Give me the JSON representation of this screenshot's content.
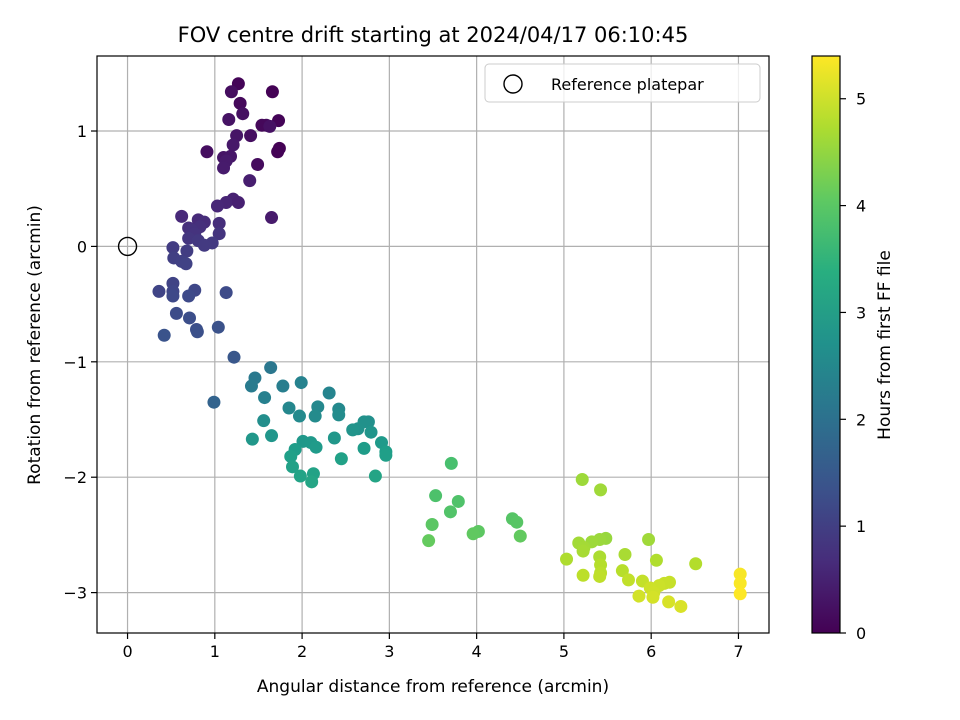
{
  "chart_data": {
    "type": "scatter",
    "title": "FOV centre drift starting at 2024/04/17 06:10:45",
    "xlabel": "Angular distance from reference (arcmin)",
    "ylabel": "Rotation from reference (arcmin)",
    "xlim": [
      -0.35,
      7.35
    ],
    "ylim": [
      -3.35,
      1.65
    ],
    "xticks": [
      0,
      1,
      2,
      3,
      4,
      5,
      6,
      7
    ],
    "xtick_labels": [
      "0",
      "1",
      "2",
      "3",
      "4",
      "5",
      "6",
      "7"
    ],
    "yticks": [
      -3,
      -2,
      -1,
      0,
      1
    ],
    "ytick_labels": [
      "−3",
      "−2",
      "−1",
      "0",
      "1"
    ],
    "grid": true,
    "legend": {
      "position": "top-right",
      "entries": [
        {
          "label": "Reference platepar",
          "marker": "open-circle"
        }
      ]
    },
    "reference_point": {
      "x": 0,
      "y": 0
    },
    "colorbar": {
      "label": "Hours from first FF file",
      "colormap": "viridis",
      "range": [
        0,
        5.4
      ],
      "ticks": [
        0,
        1,
        2,
        3,
        4,
        5
      ],
      "tick_labels": [
        "0",
        "1",
        "2",
        "3",
        "4",
        "5"
      ]
    },
    "points": [
      {
        "x": 1.27,
        "y": 1.41,
        "h": 0.05
      },
      {
        "x": 1.66,
        "y": 1.34,
        "h": 0.02
      },
      {
        "x": 1.19,
        "y": 1.34,
        "h": 0.18
      },
      {
        "x": 1.29,
        "y": 1.24,
        "h": 0.12
      },
      {
        "x": 1.32,
        "y": 1.15,
        "h": 0.22
      },
      {
        "x": 1.16,
        "y": 1.1,
        "h": 0.27
      },
      {
        "x": 1.73,
        "y": 1.09,
        "h": 0.05
      },
      {
        "x": 1.59,
        "y": 1.05,
        "h": 0.15
      },
      {
        "x": 1.54,
        "y": 1.05,
        "h": 0.1
      },
      {
        "x": 1.63,
        "y": 1.04,
        "h": 0.25
      },
      {
        "x": 1.25,
        "y": 0.96,
        "h": 0.3
      },
      {
        "x": 1.41,
        "y": 0.96,
        "h": 0.2
      },
      {
        "x": 1.21,
        "y": 0.88,
        "h": 0.35
      },
      {
        "x": 1.74,
        "y": 0.85,
        "h": 0.01
      },
      {
        "x": 1.72,
        "y": 0.82,
        "h": 0.03
      },
      {
        "x": 0.91,
        "y": 0.82,
        "h": 0.2
      },
      {
        "x": 1.1,
        "y": 0.77,
        "h": 0.3
      },
      {
        "x": 1.18,
        "y": 0.78,
        "h": 0.33
      },
      {
        "x": 1.13,
        "y": 0.74,
        "h": 0.38
      },
      {
        "x": 1.49,
        "y": 0.71,
        "h": 0.15
      },
      {
        "x": 1.1,
        "y": 0.68,
        "h": 0.4
      },
      {
        "x": 1.4,
        "y": 0.57,
        "h": 0.45
      },
      {
        "x": 1.21,
        "y": 0.41,
        "h": 0.5
      },
      {
        "x": 1.13,
        "y": 0.38,
        "h": 0.55
      },
      {
        "x": 1.27,
        "y": 0.38,
        "h": 0.48
      },
      {
        "x": 1.03,
        "y": 0.35,
        "h": 0.58
      },
      {
        "x": 1.65,
        "y": 0.25,
        "h": 0.4
      },
      {
        "x": 0.62,
        "y": 0.26,
        "h": 0.62
      },
      {
        "x": 0.81,
        "y": 0.23,
        "h": 0.65
      },
      {
        "x": 0.88,
        "y": 0.21,
        "h": 0.68
      },
      {
        "x": 1.05,
        "y": 0.2,
        "h": 0.7
      },
      {
        "x": 0.7,
        "y": 0.16,
        "h": 0.72
      },
      {
        "x": 0.83,
        "y": 0.17,
        "h": 0.75
      },
      {
        "x": 0.74,
        "y": 0.14,
        "h": 0.78
      },
      {
        "x": 0.77,
        "y": 0.11,
        "h": 0.8
      },
      {
        "x": 1.05,
        "y": 0.11,
        "h": 0.82
      },
      {
        "x": 0.7,
        "y": 0.07,
        "h": 0.85
      },
      {
        "x": 0.81,
        "y": 0.05,
        "h": 0.88
      },
      {
        "x": 0.97,
        "y": 0.03,
        "h": 0.9
      },
      {
        "x": 0.88,
        "y": 0.01,
        "h": 0.92
      },
      {
        "x": 0.52,
        "y": -0.01,
        "h": 0.95
      },
      {
        "x": 0.68,
        "y": -0.04,
        "h": 0.97
      },
      {
        "x": 0.53,
        "y": -0.1,
        "h": 1.0
      },
      {
        "x": 0.62,
        "y": -0.13,
        "h": 1.02
      },
      {
        "x": 0.67,
        "y": -0.15,
        "h": 1.05
      },
      {
        "x": 0.52,
        "y": -0.32,
        "h": 1.07
      },
      {
        "x": 0.36,
        "y": -0.39,
        "h": 1.1
      },
      {
        "x": 0.52,
        "y": -0.39,
        "h": 1.12
      },
      {
        "x": 0.77,
        "y": -0.38,
        "h": 1.15
      },
      {
        "x": 0.52,
        "y": -0.43,
        "h": 1.18
      },
      {
        "x": 0.7,
        "y": -0.43,
        "h": 1.2
      },
      {
        "x": 1.13,
        "y": -0.4,
        "h": 1.22
      },
      {
        "x": 0.56,
        "y": -0.58,
        "h": 1.25
      },
      {
        "x": 0.71,
        "y": -0.62,
        "h": 1.28
      },
      {
        "x": 0.79,
        "y": -0.72,
        "h": 1.3
      },
      {
        "x": 0.8,
        "y": -0.74,
        "h": 1.32
      },
      {
        "x": 1.04,
        "y": -0.7,
        "h": 1.35
      },
      {
        "x": 0.42,
        "y": -0.77,
        "h": 1.38
      },
      {
        "x": 1.22,
        "y": -0.96,
        "h": 1.45
      },
      {
        "x": 0.99,
        "y": -1.35,
        "h": 1.7
      },
      {
        "x": 1.64,
        "y": -1.05,
        "h": 2.15
      },
      {
        "x": 1.46,
        "y": -1.14,
        "h": 2.2
      },
      {
        "x": 1.42,
        "y": -1.21,
        "h": 2.25
      },
      {
        "x": 1.78,
        "y": -1.21,
        "h": 2.3
      },
      {
        "x": 1.57,
        "y": -1.31,
        "h": 2.35
      },
      {
        "x": 1.99,
        "y": -1.18,
        "h": 2.4
      },
      {
        "x": 2.31,
        "y": -1.27,
        "h": 2.45
      },
      {
        "x": 1.85,
        "y": -1.4,
        "h": 2.5
      },
      {
        "x": 2.18,
        "y": -1.39,
        "h": 2.52
      },
      {
        "x": 2.42,
        "y": -1.41,
        "h": 2.55
      },
      {
        "x": 1.97,
        "y": -1.47,
        "h": 2.58
      },
      {
        "x": 2.15,
        "y": -1.47,
        "h": 2.6
      },
      {
        "x": 2.42,
        "y": -1.46,
        "h": 2.62
      },
      {
        "x": 1.56,
        "y": -1.51,
        "h": 2.65
      },
      {
        "x": 2.76,
        "y": -1.52,
        "h": 2.7
      },
      {
        "x": 2.71,
        "y": -1.52,
        "h": 2.72
      },
      {
        "x": 2.64,
        "y": -1.58,
        "h": 2.75
      },
      {
        "x": 2.58,
        "y": -1.59,
        "h": 2.78
      },
      {
        "x": 2.79,
        "y": -1.61,
        "h": 2.8
      },
      {
        "x": 1.65,
        "y": -1.64,
        "h": 2.82
      },
      {
        "x": 1.43,
        "y": -1.67,
        "h": 2.84
      },
      {
        "x": 2.37,
        "y": -1.66,
        "h": 2.86
      },
      {
        "x": 2.01,
        "y": -1.69,
        "h": 2.88
      },
      {
        "x": 2.1,
        "y": -1.7,
        "h": 2.9
      },
      {
        "x": 2.91,
        "y": -1.7,
        "h": 2.92
      },
      {
        "x": 2.16,
        "y": -1.74,
        "h": 2.94
      },
      {
        "x": 2.71,
        "y": -1.75,
        "h": 2.96
      },
      {
        "x": 1.92,
        "y": -1.76,
        "h": 2.98
      },
      {
        "x": 2.96,
        "y": -1.78,
        "h": 3.0
      },
      {
        "x": 2.96,
        "y": -1.81,
        "h": 3.02
      },
      {
        "x": 1.87,
        "y": -1.82,
        "h": 3.04
      },
      {
        "x": 2.45,
        "y": -1.84,
        "h": 3.06
      },
      {
        "x": 1.89,
        "y": -1.91,
        "h": 3.08
      },
      {
        "x": 2.13,
        "y": -1.97,
        "h": 3.1
      },
      {
        "x": 1.98,
        "y": -1.99,
        "h": 3.12
      },
      {
        "x": 2.84,
        "y": -1.99,
        "h": 3.14
      },
      {
        "x": 2.11,
        "y": -2.04,
        "h": 3.16
      },
      {
        "x": 3.71,
        "y": -1.88,
        "h": 3.8
      },
      {
        "x": 3.53,
        "y": -2.16,
        "h": 3.85
      },
      {
        "x": 3.79,
        "y": -2.21,
        "h": 3.88
      },
      {
        "x": 3.7,
        "y": -2.3,
        "h": 3.9
      },
      {
        "x": 4.41,
        "y": -2.36,
        "h": 3.95
      },
      {
        "x": 4.46,
        "y": -2.39,
        "h": 3.97
      },
      {
        "x": 3.49,
        "y": -2.41,
        "h": 4.0
      },
      {
        "x": 4.02,
        "y": -2.47,
        "h": 4.02
      },
      {
        "x": 3.96,
        "y": -2.49,
        "h": 4.05
      },
      {
        "x": 4.5,
        "y": -2.51,
        "h": 4.07
      },
      {
        "x": 3.45,
        "y": -2.55,
        "h": 4.1
      },
      {
        "x": 5.21,
        "y": -2.02,
        "h": 4.6
      },
      {
        "x": 5.42,
        "y": -2.11,
        "h": 4.62
      },
      {
        "x": 5.48,
        "y": -2.53,
        "h": 4.55
      },
      {
        "x": 5.41,
        "y": -2.54,
        "h": 4.58
      },
      {
        "x": 5.32,
        "y": -2.56,
        "h": 4.6
      },
      {
        "x": 5.97,
        "y": -2.54,
        "h": 4.62
      },
      {
        "x": 5.17,
        "y": -2.57,
        "h": 4.64
      },
      {
        "x": 5.23,
        "y": -2.61,
        "h": 4.66
      },
      {
        "x": 5.22,
        "y": -2.64,
        "h": 4.68
      },
      {
        "x": 5.7,
        "y": -2.67,
        "h": 4.7
      },
      {
        "x": 5.41,
        "y": -2.69,
        "h": 4.72
      },
      {
        "x": 5.03,
        "y": -2.71,
        "h": 4.74
      },
      {
        "x": 6.06,
        "y": -2.72,
        "h": 4.76
      },
      {
        "x": 6.51,
        "y": -2.75,
        "h": 4.78
      },
      {
        "x": 5.42,
        "y": -2.76,
        "h": 4.8
      },
      {
        "x": 5.67,
        "y": -2.81,
        "h": 4.82
      },
      {
        "x": 5.42,
        "y": -2.83,
        "h": 4.84
      },
      {
        "x": 5.22,
        "y": -2.85,
        "h": 4.86
      },
      {
        "x": 5.41,
        "y": -2.86,
        "h": 4.88
      },
      {
        "x": 5.74,
        "y": -2.89,
        "h": 4.9
      },
      {
        "x": 5.9,
        "y": -2.9,
        "h": 4.92
      },
      {
        "x": 6.21,
        "y": -2.91,
        "h": 4.94
      },
      {
        "x": 6.15,
        "y": -2.92,
        "h": 4.96
      },
      {
        "x": 6.09,
        "y": -2.94,
        "h": 4.98
      },
      {
        "x": 5.99,
        "y": -2.96,
        "h": 5.0
      },
      {
        "x": 6.03,
        "y": -3.0,
        "h": 5.02
      },
      {
        "x": 5.86,
        "y": -3.03,
        "h": 5.04
      },
      {
        "x": 6.02,
        "y": -3.04,
        "h": 5.06
      },
      {
        "x": 6.2,
        "y": -3.08,
        "h": 5.08
      },
      {
        "x": 6.34,
        "y": -3.12,
        "h": 5.1
      },
      {
        "x": 7.02,
        "y": -2.84,
        "h": 5.35
      },
      {
        "x": 7.02,
        "y": -2.92,
        "h": 5.37
      },
      {
        "x": 7.02,
        "y": -3.01,
        "h": 5.4
      }
    ]
  }
}
